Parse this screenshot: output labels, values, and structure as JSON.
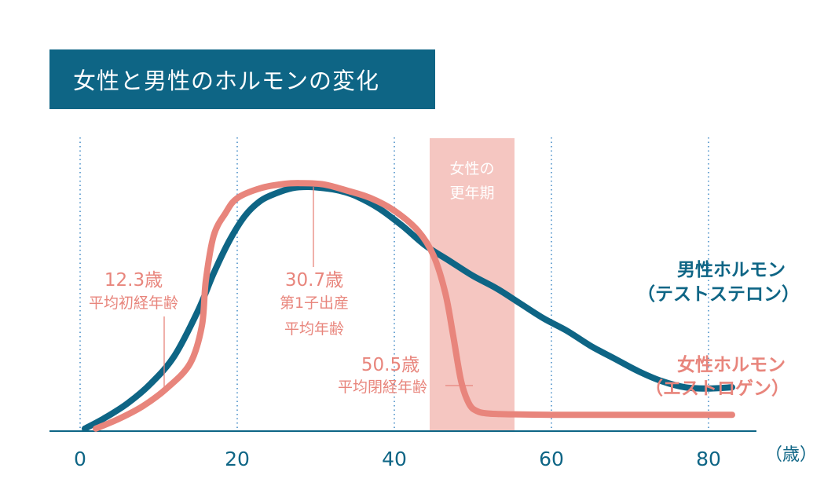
{
  "title": "女性と男性のホルモンの変化",
  "colors": {
    "male": "#0e6585",
    "female": "#e8857c",
    "female_text": "#e8857c",
    "menopause_band": "#f5c6c1",
    "axis": "#0e6585",
    "grid": "#4a90c8",
    "title_bg": "#0e6585"
  },
  "chart_data": {
    "type": "line",
    "title": "女性と男性のホルモンの変化",
    "xlabel": "（歳）",
    "ylabel": "",
    "xlim": [
      0,
      83
    ],
    "ylim": [
      0,
      100
    ],
    "x_ticks": [
      0,
      20,
      40,
      60,
      80
    ],
    "x_tick_labels": [
      "0",
      "20",
      "40",
      "60",
      "80"
    ],
    "grid": "vertical dotted at ticks",
    "band": {
      "x0": 44.5,
      "x1": 55.3,
      "label_line1": "女性の",
      "label_line2": "更年期"
    },
    "series": [
      {
        "name": "男性ホルモン",
        "sub": "（テストステロン）",
        "x": [
          0.6,
          3,
          6,
          9,
          12,
          15,
          17,
          19,
          21,
          23,
          25,
          27,
          29,
          31,
          33,
          35,
          38,
          41,
          44,
          47,
          50,
          53,
          56,
          59,
          62,
          65,
          68,
          71,
          74,
          77,
          80,
          83
        ],
        "y": [
          1,
          5,
          11,
          19,
          30,
          48,
          63,
          76,
          86,
          92,
          95,
          97,
          97.5,
          97,
          96,
          94,
          89,
          82,
          74,
          68,
          62,
          57,
          51,
          45,
          40,
          34,
          29,
          24,
          20,
          17.5,
          17,
          17.5
        ]
      },
      {
        "name": "女性ホルモン",
        "sub": "（エストロゲン）",
        "x": [
          2,
          5,
          8,
          11,
          14,
          15.5,
          16,
          17,
          18.5,
          20,
          23,
          26,
          28,
          31,
          34,
          37,
          40,
          43,
          45,
          46.5,
          47.5,
          48.5,
          49.5,
          50.5,
          52,
          55,
          60,
          70,
          83
        ],
        "y": [
          1,
          5,
          10,
          17,
          27,
          42,
          60,
          78,
          87,
          93,
          97,
          98.7,
          99,
          98.5,
          96,
          93,
          88,
          80,
          70,
          55,
          38,
          20,
          11,
          8,
          7,
          6.7,
          6.5,
          6.5,
          6.5
        ]
      }
    ],
    "annotations": [
      {
        "x": 12.3,
        "line1": "12.3歳",
        "line2": "平均初経年齢",
        "line3": ""
      },
      {
        "x": 30.7,
        "line1": "30.7歳",
        "line2": "第1子出産",
        "line3": "平均年齢"
      },
      {
        "x": 50.5,
        "line1": "50.5歳",
        "line2": "平均閉経年齢",
        "line3": ""
      }
    ]
  }
}
